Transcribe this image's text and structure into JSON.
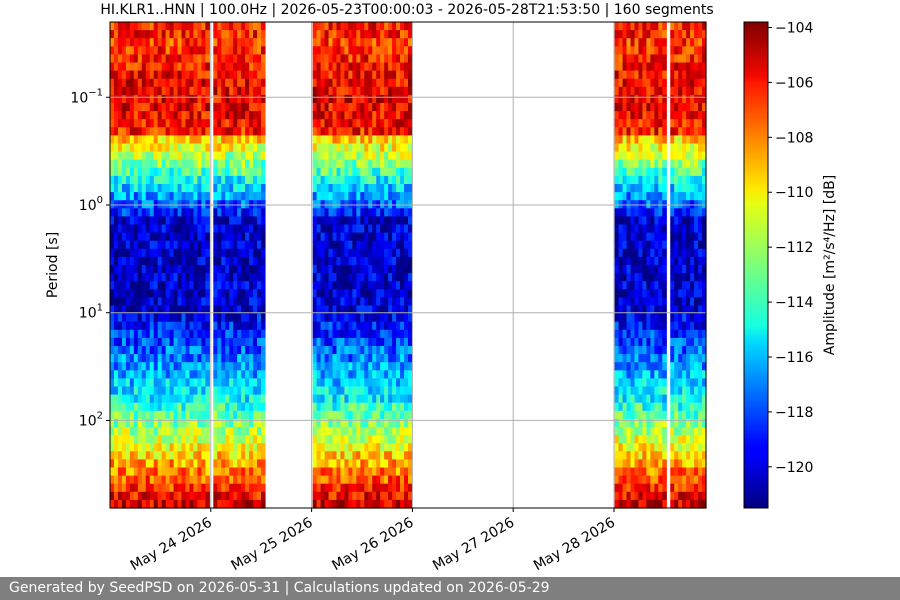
{
  "chart_data": {
    "type": "heatmap",
    "title": "HI.KLR1..HNN | 100.0Hz | 2026-05-23T00:00:03 - 2026-05-28T21:53:50 | 160 segments",
    "xlabel": "",
    "ylabel": "Period [s]",
    "y_scale": "log",
    "y_inverted": true,
    "ylim_seconds": [
      0.02,
      650
    ],
    "x_range": [
      "2026-05-23T00:00:03",
      "2026-05-28T21:53:50"
    ],
    "x_ticks": [
      {
        "date": "2026-05-24",
        "label": "May 24 2026"
      },
      {
        "date": "2026-05-25",
        "label": "May 25 2026"
      },
      {
        "date": "2026-05-26",
        "label": "May 26 2026"
      },
      {
        "date": "2026-05-27",
        "label": "May 27 2026"
      },
      {
        "date": "2026-05-28",
        "label": "May 28 2026"
      }
    ],
    "y_ticks": [
      {
        "value": 0.1,
        "label": "10",
        "exp": "−1"
      },
      {
        "value": 1,
        "label": "10",
        "exp": "0"
      },
      {
        "value": 10,
        "label": "10",
        "exp": "1"
      },
      {
        "value": 100,
        "label": "10",
        "exp": "2"
      }
    ],
    "grid": true,
    "segments": 160,
    "data_intervals": [
      [
        "2026-05-23T00:00:03",
        "2026-05-23T23:30:00"
      ],
      [
        "2026-05-24T00:30:00",
        "2026-05-24T12:30:00"
      ],
      [
        "2026-05-25T00:00:00",
        "2026-05-26T00:00:00"
      ],
      [
        "2026-05-28T00:00:00",
        "2026-05-28T12:30:00"
      ],
      [
        "2026-05-28T13:30:00",
        "2026-05-28T21:53:50"
      ]
    ],
    "colorbar": {
      "label": "Amplitude",
      "unit_html": "[m²/s⁴/Hz] [dB]",
      "range_db": [
        -121.5,
        -103.8
      ],
      "ticks": [
        -104,
        -106,
        -108,
        -110,
        -112,
        -114,
        -116,
        -118,
        -120
      ],
      "colormap": "jet"
    }
  },
  "footer": {
    "text": "Generated by SeedPSD on 2026-05-31 | Calculations updated on 2026-05-29"
  }
}
